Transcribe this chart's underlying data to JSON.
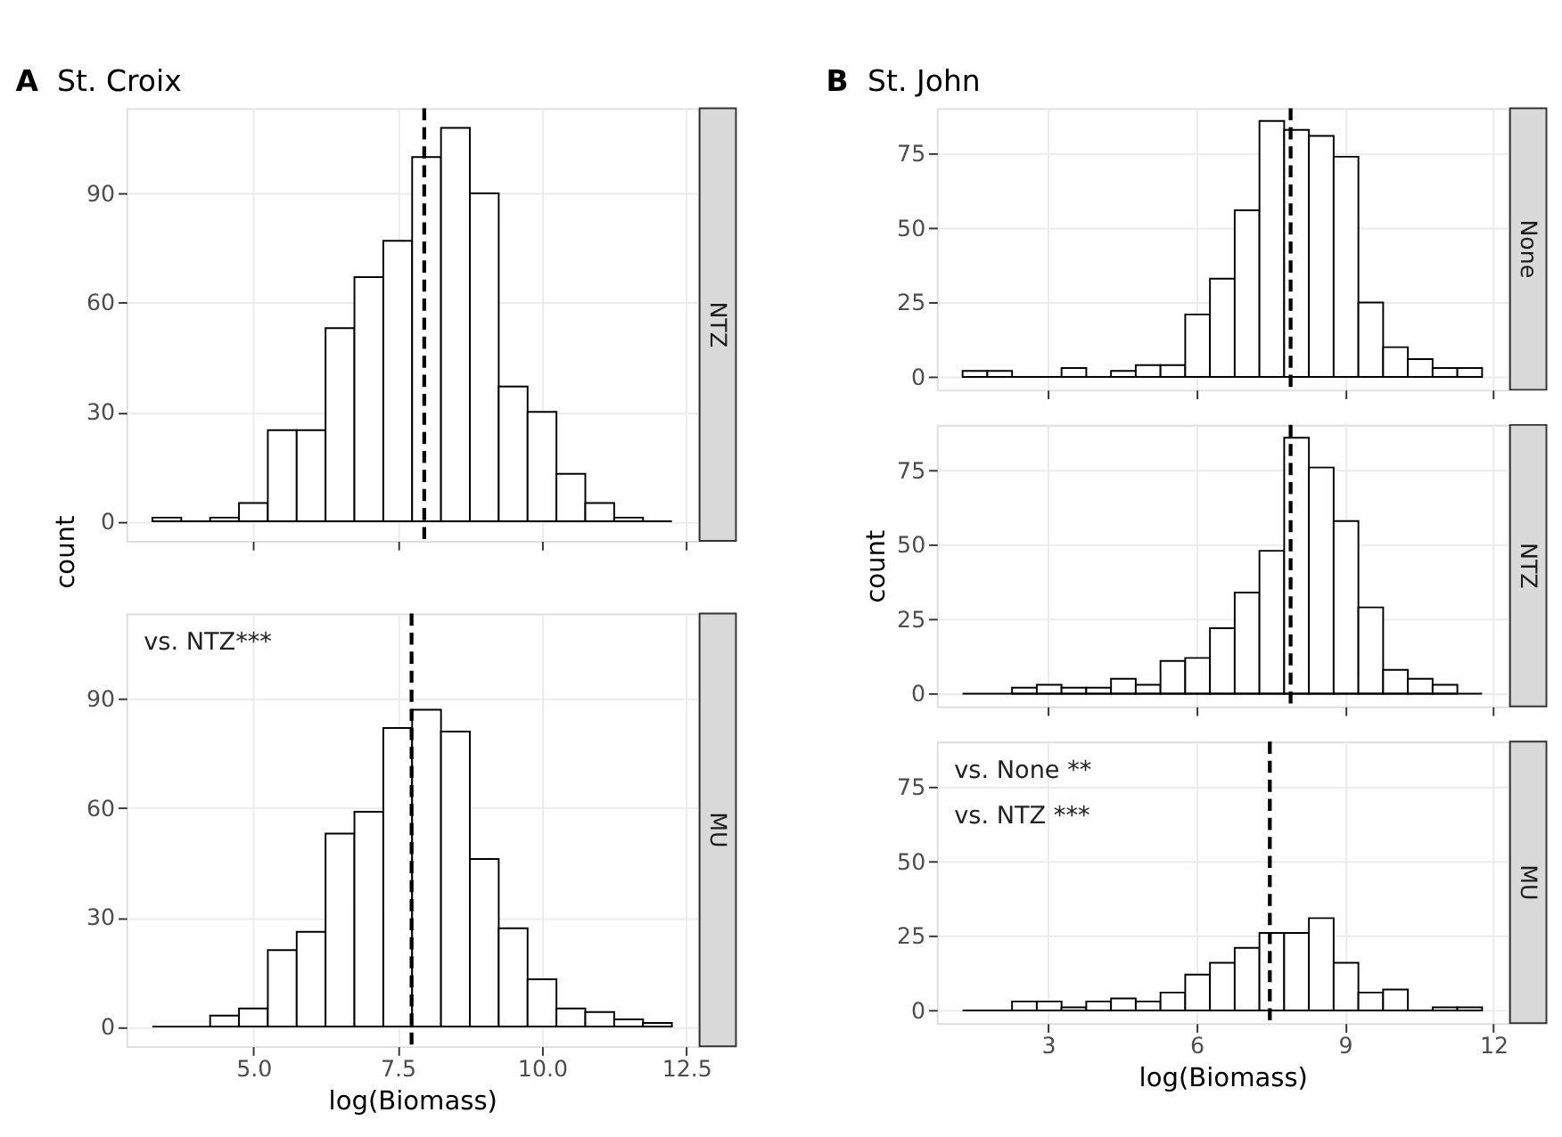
{
  "chart_data": [
    {
      "type": "histogram",
      "title": "NTZ",
      "subtitle": "St. Croix",
      "annotations": [
        "A"
      ],
      "ylabel": "count",
      "color": "#ffffff",
      "bins": [
        3.25,
        3.75,
        4.25,
        4.75,
        5.25,
        5.75,
        6.25,
        6.75,
        7.25,
        7.75,
        8.25,
        8.75,
        9.25,
        9.75,
        10.25,
        10.75,
        11.25,
        11.75,
        12.25
      ],
      "values": [
        1,
        0,
        1,
        5,
        25,
        25,
        53,
        67,
        77,
        100,
        108,
        90,
        37,
        30,
        13,
        5,
        1,
        0
      ],
      "xlim": [
        2.8,
        12.7
      ],
      "xticks": [
        {
          "value": 5,
          "label": null
        },
        {
          "value": 7.5,
          "label": null
        },
        {
          "value": 10,
          "label": null
        },
        {
          "value": 12.5,
          "label": null
        }
      ],
      "ylim": [
        -5.4,
        113.4
      ],
      "yticks": [
        0,
        30,
        60,
        90
      ],
      "ref_lines": [
        {
          "axis": "x",
          "value": 7.96,
          "color": "#000000",
          "line_style": "dashed"
        }
      ],
      "grid": true,
      "tick_labels": "y"
    },
    {
      "type": "histogram",
      "title": "MU",
      "annotations": [
        "vs. NTZ***"
      ],
      "xlabel": "log(Biomass)",
      "color": "#ffffff",
      "bins": [
        3.25,
        3.75,
        4.25,
        4.75,
        5.25,
        5.75,
        6.25,
        6.75,
        7.25,
        7.75,
        8.25,
        8.75,
        9.25,
        9.75,
        10.25,
        10.75,
        11.25,
        11.75,
        12.25
      ],
      "values": [
        0,
        0,
        3,
        5,
        21,
        26,
        53,
        59,
        82,
        87,
        81,
        46,
        27,
        13,
        5,
        4,
        2,
        1
      ],
      "xlim": [
        2.8,
        12.7
      ],
      "xticks": [
        {
          "value": 5,
          "label": "5.0"
        },
        7.5,
        {
          "value": 10,
          "label": "10.0"
        },
        12.5
      ],
      "ylim": [
        -5.4,
        113.4
      ],
      "yticks": [
        0,
        30,
        60,
        90
      ],
      "ref_lines": [
        {
          "axis": "x",
          "value": 7.74,
          "color": "#000000",
          "line_style": "dashed"
        }
      ],
      "grid": true
    },
    {
      "type": "histogram",
      "title": "None",
      "subtitle": "St. John",
      "annotations": [
        "B"
      ],
      "color": "#ffffff",
      "bins": [
        1.27,
        1.77,
        2.27,
        2.77,
        3.27,
        3.77,
        4.27,
        4.77,
        5.27,
        5.77,
        6.27,
        6.77,
        7.27,
        7.77,
        8.27,
        8.77,
        9.27,
        9.77,
        10.27,
        10.77,
        11.27,
        11.77
      ],
      "values": [
        2,
        2,
        0,
        0,
        3,
        0,
        2,
        4,
        4,
        21,
        33,
        56,
        86,
        83,
        81,
        74,
        25,
        10,
        6,
        3,
        3
      ],
      "xlim": [
        0.75,
        12.3
      ],
      "xticks": [
        {
          "value": 3,
          "label": null
        },
        {
          "value": 6,
          "label": null
        },
        {
          "value": 9,
          "label": null
        },
        {
          "value": 12,
          "label": null
        }
      ],
      "ylim": [
        -4.3,
        90.3
      ],
      "yticks": [
        0,
        25,
        50,
        75
      ],
      "ref_lines": [
        {
          "axis": "x",
          "value": 7.9,
          "color": "#000000",
          "line_style": "dashed"
        }
      ],
      "grid": true,
      "tick_labels": "y"
    },
    {
      "type": "histogram",
      "title": "NTZ",
      "ylabel": "count",
      "color": "#ffffff",
      "bins": [
        1.27,
        1.77,
        2.27,
        2.77,
        3.27,
        3.77,
        4.27,
        4.77,
        5.27,
        5.77,
        6.27,
        6.77,
        7.27,
        7.77,
        8.27,
        8.77,
        9.27,
        9.77,
        10.27,
        10.77,
        11.27,
        11.77
      ],
      "values": [
        0,
        0,
        2,
        3,
        2,
        2,
        5,
        3,
        11,
        12,
        22,
        34,
        48,
        86,
        76,
        58,
        29,
        8,
        5,
        3,
        0
      ],
      "xlim": [
        0.75,
        12.3
      ],
      "xticks": [
        {
          "value": 3,
          "label": null
        },
        {
          "value": 6,
          "label": null
        },
        {
          "value": 9,
          "label": null
        },
        {
          "value": 12,
          "label": null
        }
      ],
      "ylim": [
        -4.3,
        90.3
      ],
      "yticks": [
        0,
        25,
        50,
        75
      ],
      "ref_lines": [
        {
          "axis": "x",
          "value": 7.9,
          "color": "#000000",
          "line_style": "dashed"
        }
      ],
      "grid": true,
      "tick_labels": "y"
    },
    {
      "type": "histogram",
      "title": "MU",
      "annotations": [
        "vs. None **",
        "vs. NTZ ***"
      ],
      "xlabel": "log(Biomass)",
      "color": "#ffffff",
      "bins": [
        1.27,
        1.77,
        2.27,
        2.77,
        3.27,
        3.77,
        4.27,
        4.77,
        5.27,
        5.77,
        6.27,
        6.77,
        7.27,
        7.77,
        8.27,
        8.77,
        9.27,
        9.77,
        10.27,
        10.77,
        11.27,
        11.77
      ],
      "values": [
        0,
        0,
        3,
        3,
        1,
        3,
        4,
        3,
        6,
        12,
        16,
        21,
        26,
        26,
        31,
        16,
        6,
        7,
        0,
        1,
        1
      ],
      "xlim": [
        0.75,
        12.3
      ],
      "xticks": [
        3,
        6,
        9,
        12
      ],
      "ylim": [
        -4.3,
        90.3
      ],
      "yticks": [
        0,
        25,
        50,
        75
      ],
      "ref_lines": [
        {
          "axis": "x",
          "value": 7.48,
          "color": "#000000",
          "line_style": "dashed"
        }
      ],
      "grid": true
    }
  ]
}
